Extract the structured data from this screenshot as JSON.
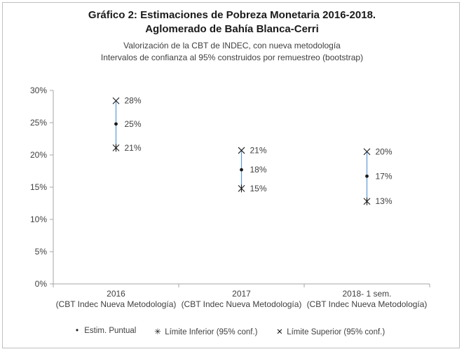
{
  "chart_data": {
    "type": "scatter",
    "title": "Gráfico 2: Estimaciones de Pobreza Monetaria 2016-2018.",
    "title_line2": "Aglomerado de Bahía Blanca-Cerri",
    "subtitle": "Valorización de la CBT de INDEC, con nueva metodología",
    "subtitle_line2": "Intervalos de confianza al 95% construidos por remuestreo (bootstrap)",
    "categories": [
      [
        "2016",
        "(CBT Indec Nueva Metodología)"
      ],
      [
        "2017",
        "(CBT Indec Nueva Metodología)"
      ],
      [
        "2018- 1 sem.",
        "(CBT Indec Nueva Metodología)"
      ]
    ],
    "ylim": [
      0,
      30
    ],
    "yticks": [
      "0%",
      "5%",
      "10%",
      "15%",
      "20%",
      "25%",
      "30%"
    ],
    "grid": false,
    "legend_position": "bottom",
    "series": [
      {
        "name": "Estim. Puntual",
        "marker": "dot",
        "values": [
          24.8,
          17.7,
          16.7
        ],
        "labels": [
          "25%",
          "18%",
          "17%"
        ]
      },
      {
        "name": "Límite Inferior (95% conf.)",
        "marker": "star",
        "values": [
          21.1,
          14.8,
          12.8
        ],
        "labels": [
          "21%",
          "15%",
          "13%"
        ]
      },
      {
        "name": "Límite Superior (95% conf.)",
        "marker": "x",
        "values": [
          28.4,
          20.7,
          20.5
        ],
        "labels": [
          "28%",
          "21%",
          "20%"
        ]
      }
    ],
    "interval_line_color": "#5b9bd5",
    "marker_color": "#1a1a1a"
  }
}
